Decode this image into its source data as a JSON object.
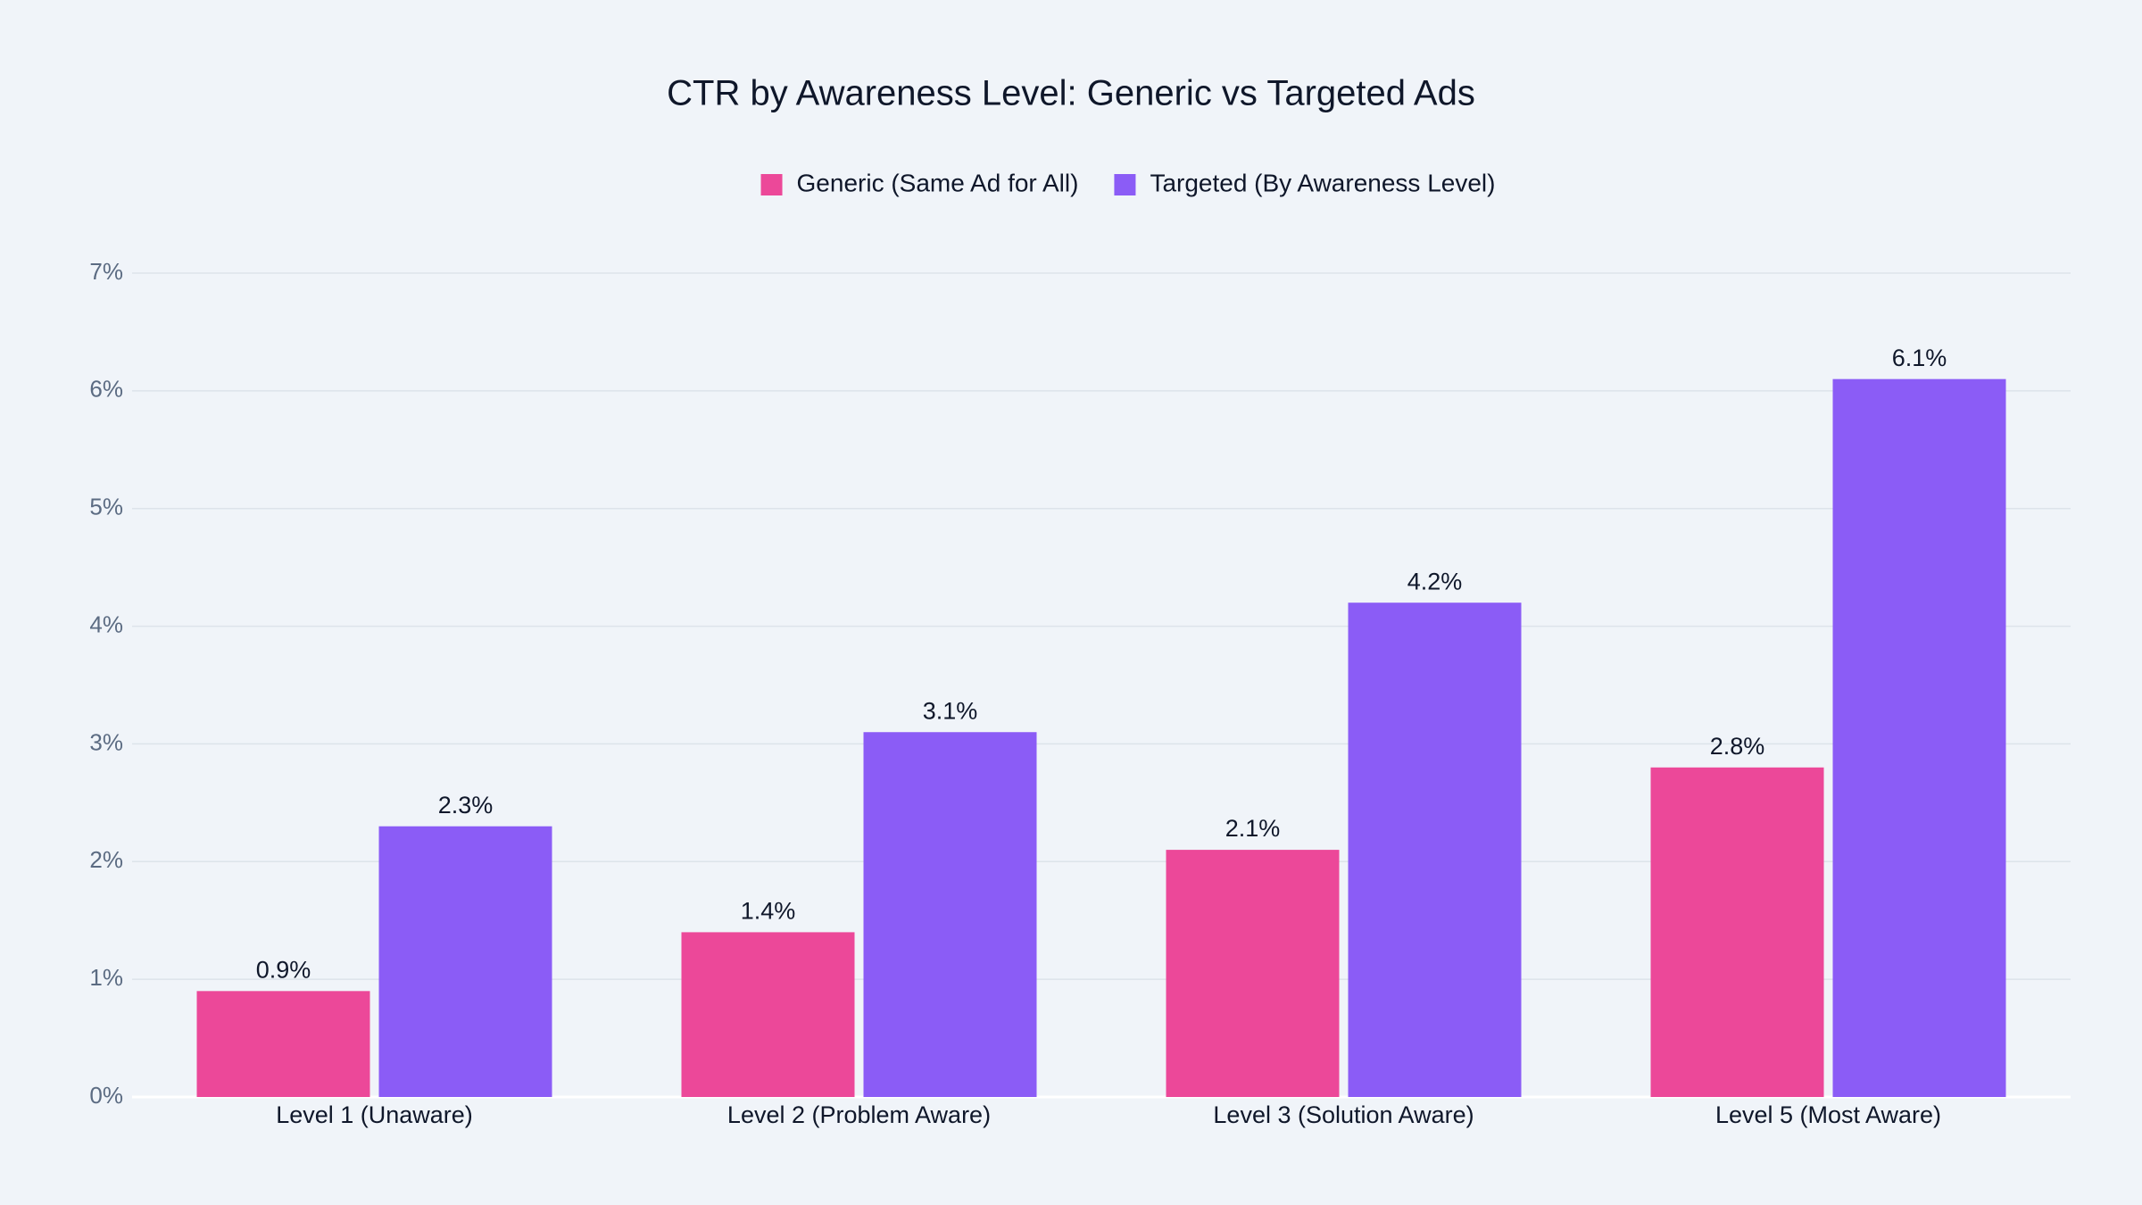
{
  "chart_data": {
    "type": "bar",
    "title": "CTR by Awareness Level: Generic vs Targeted Ads",
    "categories": [
      "Level 1 (Unaware)",
      "Level 2 (Problem Aware)",
      "Level 3 (Solution Aware)",
      "Level 5 (Most Aware)"
    ],
    "series": [
      {
        "name": "Generic (Same Ad for All)",
        "color": "#ec4899",
        "values": [
          0.9,
          1.4,
          2.1,
          2.8
        ],
        "value_labels": [
          "0.9%",
          "1.4%",
          "2.1%",
          "2.8%"
        ]
      },
      {
        "name": "Targeted (By Awareness Level)",
        "color": "#8b5cf6",
        "values": [
          2.3,
          3.1,
          4.2,
          6.1
        ],
        "value_labels": [
          "2.3%",
          "3.1%",
          "4.2%",
          "6.1%"
        ]
      }
    ],
    "ylim": [
      0,
      7
    ],
    "yticks": [
      {
        "value": 0,
        "label": "0%"
      },
      {
        "value": 1,
        "label": "1%"
      },
      {
        "value": 2,
        "label": "2%"
      },
      {
        "value": 3,
        "label": "3%"
      },
      {
        "value": 4,
        "label": "4%"
      },
      {
        "value": 5,
        "label": "5%"
      },
      {
        "value": 6,
        "label": "6%"
      },
      {
        "value": 7,
        "label": "7%"
      }
    ],
    "grid": true,
    "legend": "top"
  }
}
